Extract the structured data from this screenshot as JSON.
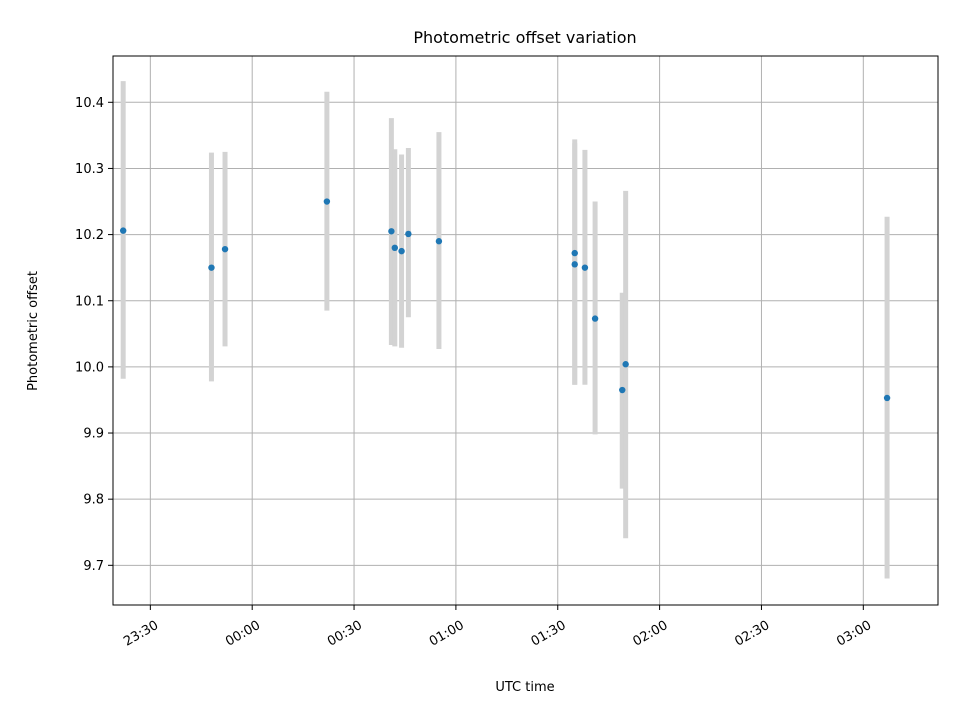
{
  "chart_data": {
    "type": "scatter",
    "title": "Photometric offset variation",
    "xlabel": "UTC time",
    "ylabel": "Photometric offset",
    "xlim": [
      "23:19",
      "03:22"
    ],
    "ylim": [
      9.64,
      10.47
    ],
    "x_ticks": [
      "23:30",
      "00:00",
      "00:30",
      "01:00",
      "01:30",
      "02:00",
      "02:30",
      "03:00"
    ],
    "y_ticks": [
      9.7,
      9.8,
      9.9,
      10.0,
      10.1,
      10.2,
      10.3,
      10.4
    ],
    "grid": true,
    "legend": "none",
    "error_bars": true,
    "colors": {
      "point": "#1f77b4",
      "error_bar": "#d3d3d3",
      "grid": "#b0b0b0"
    },
    "series": [
      {
        "points": [
          {
            "time": "23:22",
            "y": 10.206,
            "ylow": 9.982,
            "yhigh": 10.432
          },
          {
            "time": "23:48",
            "y": 10.15,
            "ylow": 9.978,
            "yhigh": 10.324
          },
          {
            "time": "23:52",
            "y": 10.178,
            "ylow": 10.031,
            "yhigh": 10.325
          },
          {
            "time": "00:22",
            "y": 10.25,
            "ylow": 10.085,
            "yhigh": 10.416
          },
          {
            "time": "00:41",
            "y": 10.205,
            "ylow": 10.033,
            "yhigh": 10.376
          },
          {
            "time": "00:42",
            "y": 10.18,
            "ylow": 10.031,
            "yhigh": 10.329
          },
          {
            "time": "00:44",
            "y": 10.175,
            "ylow": 10.029,
            "yhigh": 10.321
          },
          {
            "time": "00:46",
            "y": 10.201,
            "ylow": 10.075,
            "yhigh": 10.331
          },
          {
            "time": "00:55",
            "y": 10.19,
            "ylow": 10.027,
            "yhigh": 10.355
          },
          {
            "time": "01:35",
            "y": 10.172,
            "ylow": 9.973,
            "yhigh": 10.344
          },
          {
            "time": "01:35",
            "y": 10.155,
            "ylow": 9.973,
            "yhigh": 10.338
          },
          {
            "time": "01:38",
            "y": 10.15,
            "ylow": 9.973,
            "yhigh": 10.328
          },
          {
            "time": "01:41",
            "y": 10.073,
            "ylow": 9.898,
            "yhigh": 10.25
          },
          {
            "time": "01:49",
            "y": 9.965,
            "ylow": 9.816,
            "yhigh": 10.112
          },
          {
            "time": "01:50",
            "y": 10.004,
            "ylow": 9.741,
            "yhigh": 10.266
          },
          {
            "time": "03:07",
            "y": 9.953,
            "ylow": 9.68,
            "yhigh": 10.227
          }
        ]
      }
    ]
  }
}
